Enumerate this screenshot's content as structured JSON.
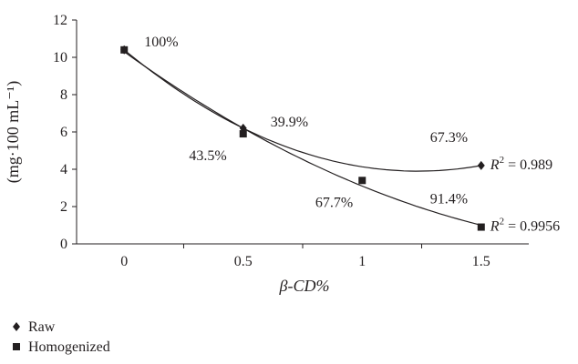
{
  "chart_data": {
    "type": "scatter",
    "title": "",
    "xlabel": "β-CD%",
    "ylabel": "(mg·100 mL⁻¹)",
    "xlim": [
      -0.2,
      1.7
    ],
    "ylim": [
      0,
      12
    ],
    "x_ticks": [
      "0",
      "0.5",
      "1",
      "1.5"
    ],
    "y_ticks": [
      "0",
      "2",
      "4",
      "6",
      "8",
      "10",
      "12"
    ],
    "grid": false,
    "legend_position": "bottom-left",
    "series": [
      {
        "name": "Raw",
        "marker": "diamond",
        "x": [
          0,
          0.5,
          1.5
        ],
        "y": [
          10.4,
          6.2,
          4.2
        ],
        "trendline": "polynomial",
        "r2_label": "R² = 0.989"
      },
      {
        "name": "Homogenized",
        "marker": "square",
        "x": [
          0,
          0.5,
          1,
          1.5
        ],
        "y": [
          10.4,
          5.9,
          3.4,
          0.9
        ],
        "trendline": "polynomial",
        "r2_label": "R² = 0.9956"
      }
    ],
    "annotations": [
      {
        "text": "100%",
        "x": 0,
        "y": 10.4
      },
      {
        "text": "39.9%",
        "x": 0.5,
        "y": 6.2
      },
      {
        "text": "43.5%",
        "x": 0.5,
        "y": 5.9
      },
      {
        "text": "67.7%",
        "x": 1,
        "y": 3.4
      },
      {
        "text": "67.3%",
        "x": 1.5,
        "y": 4.2
      },
      {
        "text": "91.4%",
        "x": 1.5,
        "y": 0.9
      }
    ]
  }
}
